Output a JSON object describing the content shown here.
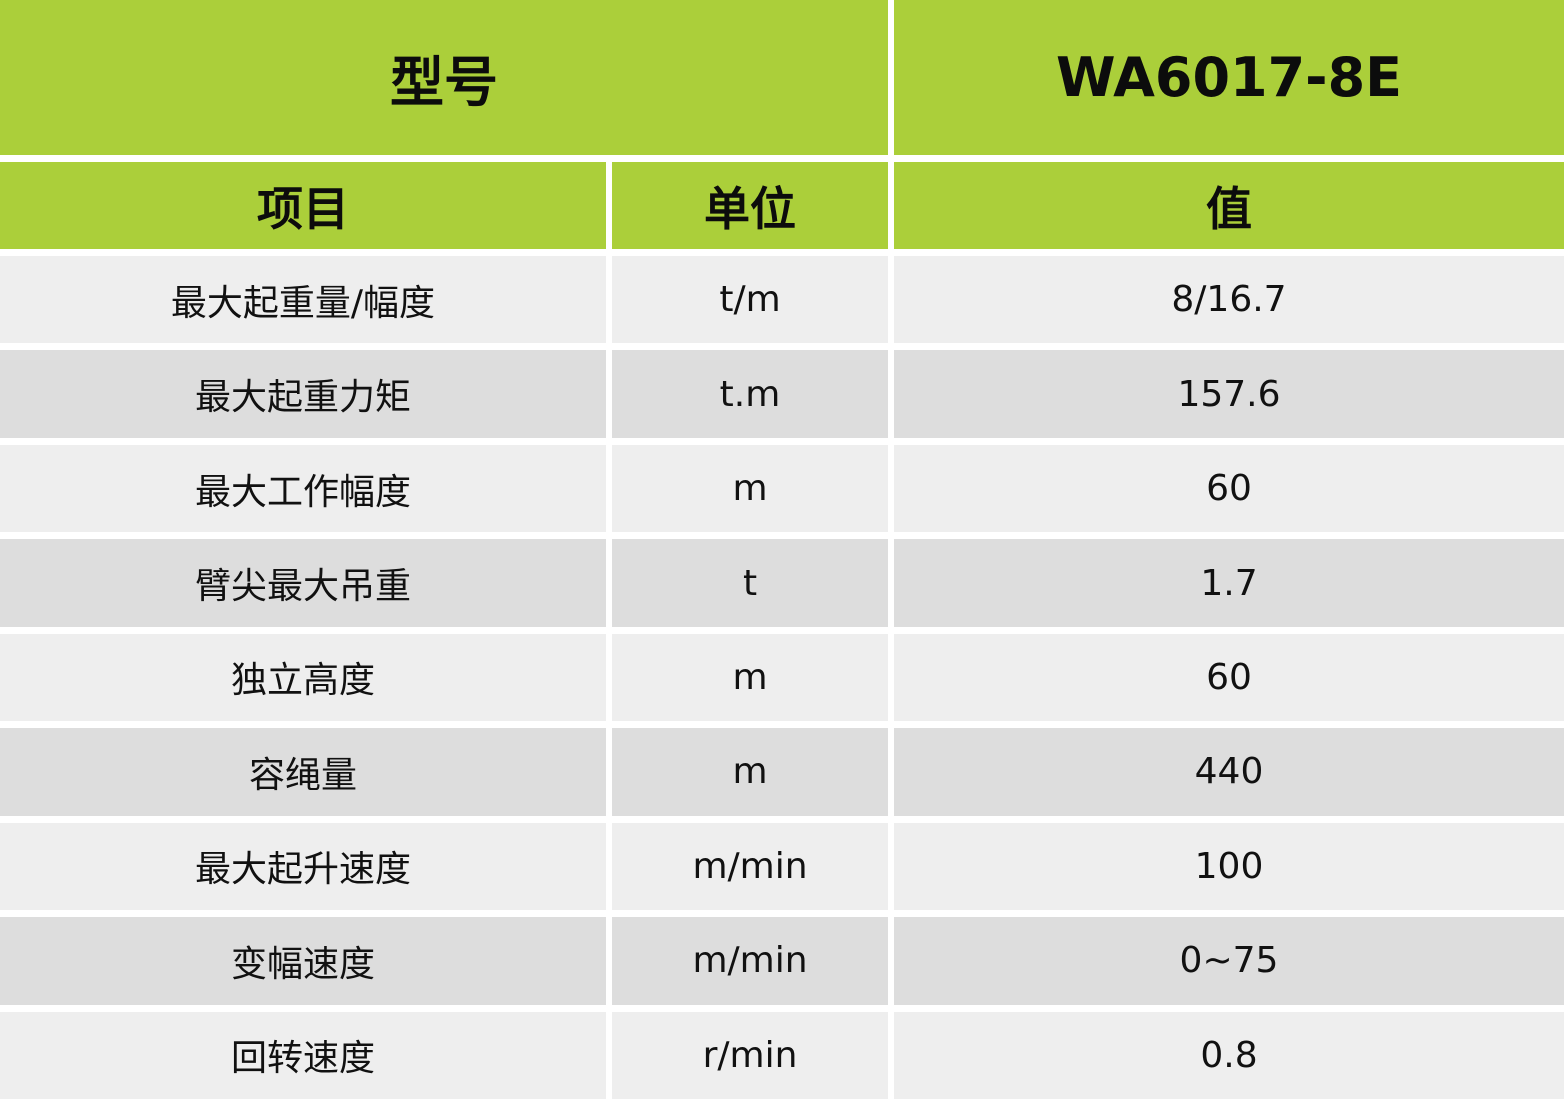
{
  "header": {
    "model_label": "型号",
    "model_value": "WA6017-8E",
    "col_item": "项目",
    "col_unit": "单位",
    "col_value": "值",
    "color": "#abcf3a"
  },
  "rows": [
    {
      "item": "最大起重量/幅度",
      "unit": "t/m",
      "value": "8/16.7"
    },
    {
      "item": "最大起重力矩",
      "unit": "t.m",
      "value": "157.6"
    },
    {
      "item": "最大工作幅度",
      "unit": "m",
      "value": "60"
    },
    {
      "item": "臂尖最大吊重",
      "unit": "t",
      "value": "1.7"
    },
    {
      "item": "独立高度",
      "unit": "m",
      "value": "60"
    },
    {
      "item": "容绳量",
      "unit": "m",
      "value": "440"
    },
    {
      "item": "最大起升速度",
      "unit": "m/min",
      "value": "100"
    },
    {
      "item": "变幅速度",
      "unit": "m/min",
      "value": "0~75"
    },
    {
      "item": "回转速度",
      "unit": "r/min",
      "value": "0.8"
    }
  ]
}
